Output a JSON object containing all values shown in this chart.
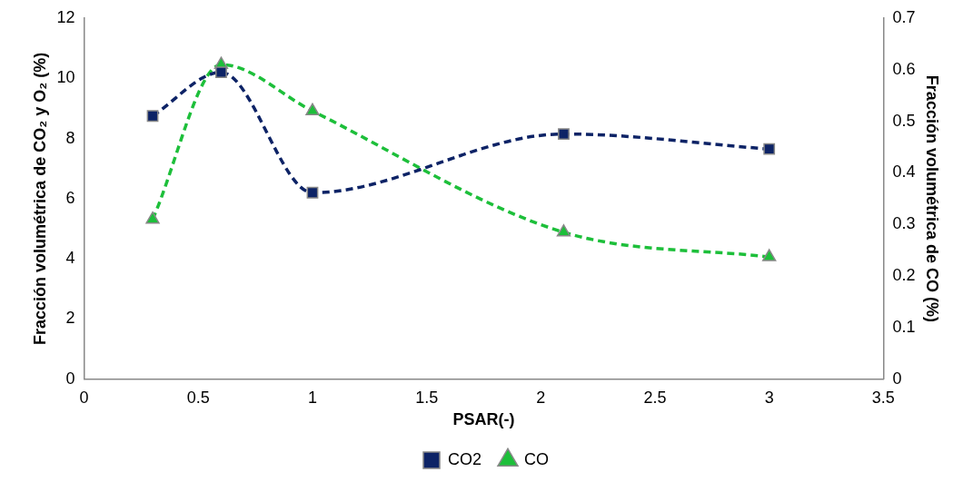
{
  "chart_data": {
    "type": "line",
    "xlabel": "PSAR(-)",
    "ylabel": "Fracción volumétrica de CO₂ y O₂ (%)",
    "y2label": "Fracción volumétrica de CO (%)",
    "xlim": [
      0,
      3.5
    ],
    "xticks": [
      0,
      0.5,
      1,
      1.5,
      2,
      2.5,
      3,
      3.5
    ],
    "ylim": [
      0,
      12
    ],
    "yticks": [
      0,
      2,
      4,
      6,
      8,
      10,
      12
    ],
    "y2lim": [
      0,
      0.7
    ],
    "y2ticks": [
      0,
      0.1,
      0.2,
      0.3,
      0.4,
      0.5,
      0.6,
      0.7
    ],
    "grid": false,
    "legend": "bottom",
    "line_style": "dashed",
    "series": [
      {
        "name": "CO2",
        "color": "#0d2366",
        "marker": "square",
        "x": [
          0.3,
          0.6,
          1,
          2.1,
          3
        ],
        "values": [
          8.75,
          10.2,
          6.2,
          8.15,
          7.65
        ]
      },
      {
        "name": "CO",
        "color": "#1dbf3a",
        "marker": "triangle",
        "axis": "y2",
        "x": [
          0.3,
          0.6,
          1,
          2.1,
          3
        ],
        "values": [
          0.31,
          0.61,
          0.52,
          0.285,
          0.237
        ]
      }
    ]
  }
}
